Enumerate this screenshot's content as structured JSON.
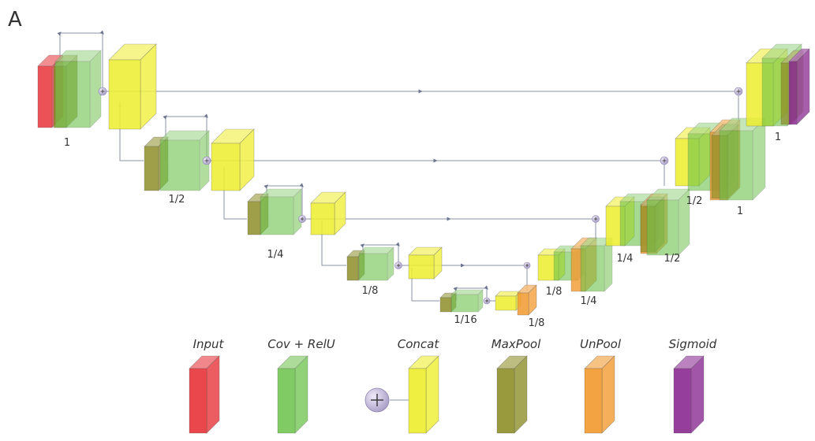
{
  "panel_label": "A",
  "colors": {
    "input": "#e8343a",
    "conv": "#6cc24a",
    "concat": "#eeee2e",
    "maxpool": "#8f8f2a",
    "unpool": "#f39a2f",
    "sigmoid": "#8a2a91",
    "plus_node": "#b7aed1",
    "line": "#8a93a8"
  },
  "scale_labels": [
    "1",
    "1/2",
    "1/4",
    "1/8",
    "1/16",
    "1/8",
    "1/8",
    "1/4",
    "1/4",
    "1/2",
    "1/2",
    "1",
    "1"
  ],
  "legend": [
    {
      "label": "Input",
      "type": "input"
    },
    {
      "label": "Cov + RelU",
      "type": "conv"
    },
    {
      "label": "Concat",
      "type": "concat"
    },
    {
      "label": "MaxPool",
      "type": "maxpool"
    },
    {
      "label": "UnPool",
      "type": "unpool"
    },
    {
      "label": "Sigmoid",
      "type": "sigmoid"
    }
  ]
}
